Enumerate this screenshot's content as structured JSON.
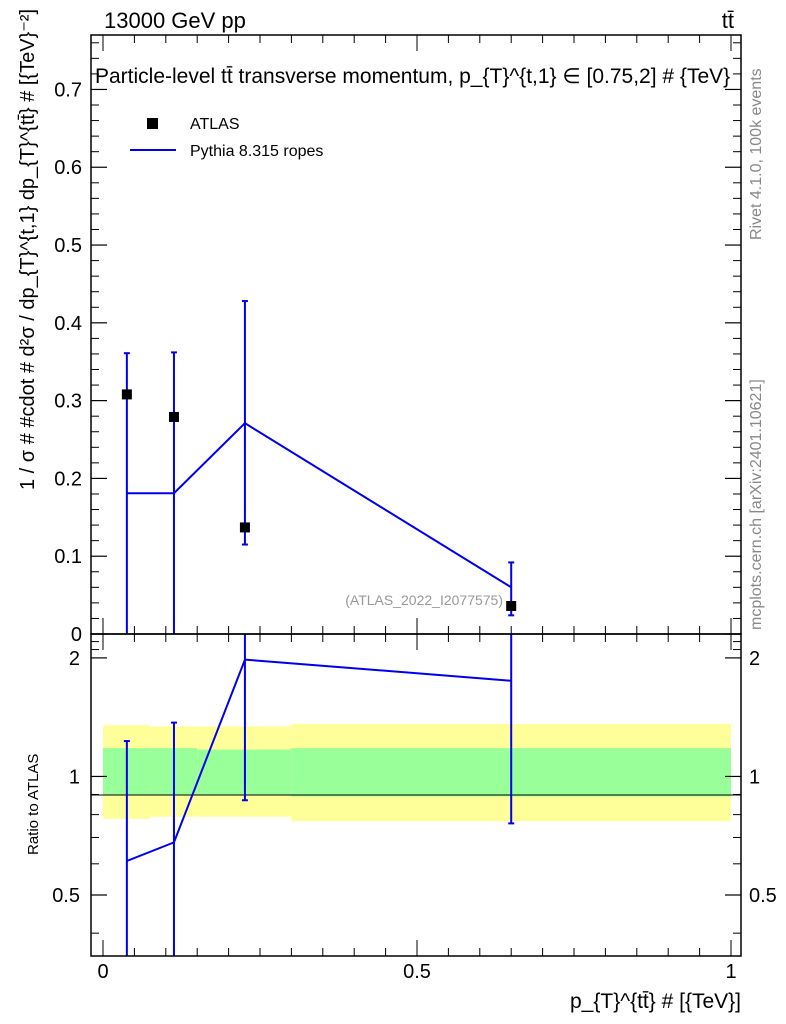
{
  "header": {
    "energy_label": "13000 GeV pp",
    "process_label": "tt̄"
  },
  "side_labels": {
    "rivet": "Rivet 4.1.0,  100k events",
    "url": "mcplots.cern.ch [arXiv:2401.10621]"
  },
  "chart_data": [
    {
      "type": "line",
      "title": "Particle-level tt̄ transverse momentum, p_{T}^{t,1} ∈ [0.75,2] # {TeV}",
      "xlabel": "",
      "ylabel": "1 / σ # #cdot # d²σ / dp_{T}^{t,1} dp_{T}^{tt̄} # [{TeV}⁻²]",
      "watermark": "(ATLAS_2022_I2077575)",
      "xlim": [
        0,
        1
      ],
      "ylim": [
        0,
        0.77
      ],
      "yticks": [
        "0",
        "0.1",
        "0.2",
        "0.3",
        "0.4",
        "0.5",
        "0.6",
        "0.7"
      ],
      "legend_position": "top-left",
      "series": [
        {
          "name": "ATLAS",
          "style": "markers",
          "color": "#000000",
          "x": [
            0.038,
            0.113,
            0.226,
            0.65
          ],
          "y": [
            0.308,
            0.279,
            0.137,
            0.036
          ],
          "y_err_low": [
            0.308,
            0.279,
            0.022,
            0.012
          ],
          "y_err_high": [
            0.053,
            0.083,
            0.291,
            0.056
          ]
        },
        {
          "name": "Pythia 8.315 ropes",
          "style": "line",
          "color": "#0000ee",
          "x": [
            0.038,
            0.113,
            0.226,
            0.65
          ],
          "y": [
            0.181,
            0.181,
            0.271,
            0.06
          ]
        }
      ]
    },
    {
      "type": "line",
      "title": "",
      "xlabel": "p_{T}^{tt̄} # [{TeV}]",
      "ylabel": "Ratio to ATLAS",
      "xlim": [
        0,
        1
      ],
      "ylim": [
        0.35,
        2.3
      ],
      "xticks": [
        "0",
        "0.5",
        "1"
      ],
      "yticks": [
        "0.5",
        "1",
        "2"
      ],
      "reference_line": 1,
      "bands": [
        {
          "x": [
            0.0,
            0.075
          ],
          "inner": [
            0.9,
            1.18
          ],
          "outer": [
            0.78,
            1.35
          ]
        },
        {
          "x": [
            0.075,
            0.15
          ],
          "inner": [
            0.9,
            1.18
          ],
          "outer": [
            0.79,
            1.34
          ]
        },
        {
          "x": [
            0.15,
            0.3
          ],
          "inner": [
            0.9,
            1.17
          ],
          "outer": [
            0.79,
            1.34
          ]
        },
        {
          "x": [
            0.3,
            1.0
          ],
          "inner": [
            0.89,
            1.18
          ],
          "outer": [
            0.77,
            1.36
          ]
        }
      ],
      "series": [
        {
          "name": "Pythia 8.315 ropes",
          "color": "#0000ee",
          "x": [
            0.038,
            0.113,
            0.226,
            0.65
          ],
          "y": [
            0.61,
            0.68,
            1.98,
            1.75
          ],
          "y_err_low": [
            0.35,
            0.35,
            0.87,
            0.76
          ],
          "y_err_high": [
            1.23,
            1.37,
            2.3,
            2.3
          ]
        }
      ]
    }
  ]
}
